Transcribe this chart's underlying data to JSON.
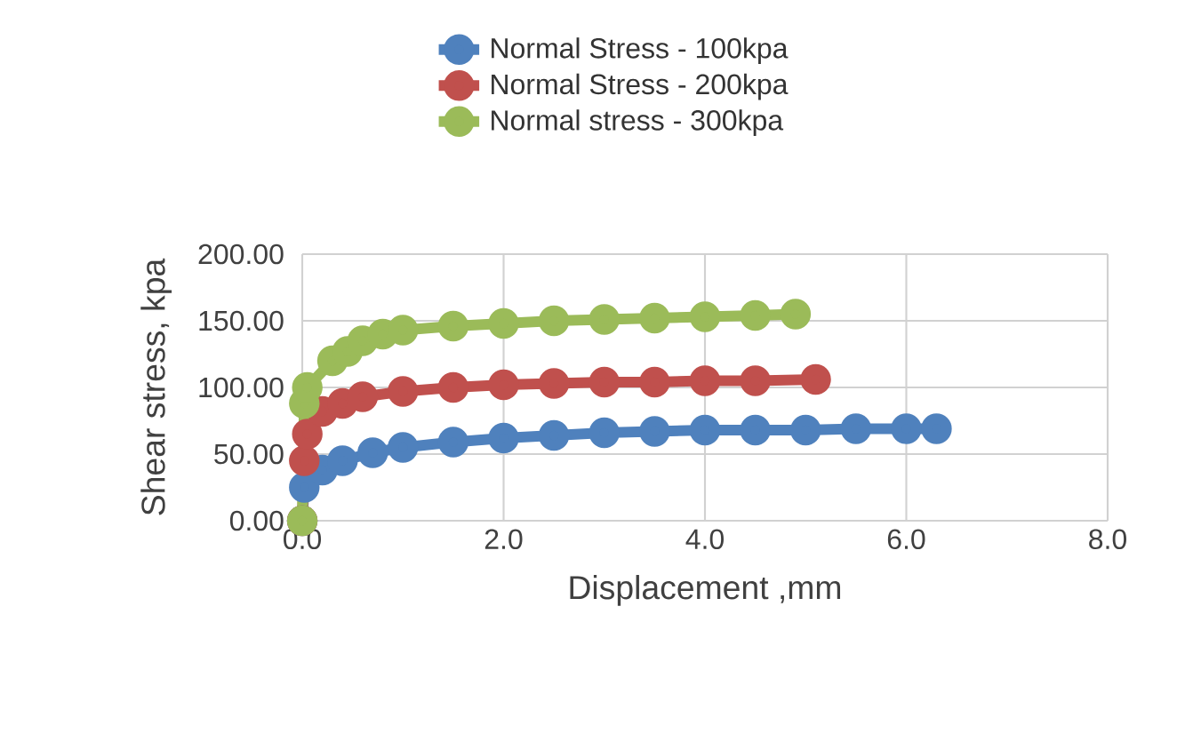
{
  "chart_data": {
    "type": "line",
    "xlabel": "Displacement ,mm",
    "ylabel": "Shear stress, kpa",
    "xlim": [
      0,
      8
    ],
    "xticks": [
      {
        "value": 0,
        "label": "0.0"
      },
      {
        "value": 2,
        "label": "2.0"
      },
      {
        "value": 4,
        "label": "4.0"
      },
      {
        "value": 6,
        "label": "6.0"
      },
      {
        "value": 8,
        "label": "8.0"
      }
    ],
    "ylim": [
      0,
      200
    ],
    "yticks": [
      {
        "value": 0,
        "label": "0.00"
      },
      {
        "value": 50,
        "label": "50.00"
      },
      {
        "value": 100,
        "label": "100.00"
      },
      {
        "value": 150,
        "label": "150.00"
      },
      {
        "value": 200,
        "label": "200.00"
      }
    ],
    "grid": true,
    "legend": "top",
    "marker": "circle",
    "series": [
      {
        "name": "Normal Stress - 100kpa",
        "color": "#4f81bd",
        "x": [
          0,
          0.02,
          0.2,
          0.4,
          0.7,
          1.0,
          1.5,
          2.0,
          2.5,
          3.0,
          3.5,
          4.0,
          4.5,
          5.0,
          5.5,
          6.0,
          6.3
        ],
        "values": [
          0,
          25,
          38,
          45,
          51,
          55,
          59,
          62,
          64,
          66,
          67,
          68,
          68,
          68,
          69,
          69,
          69
        ]
      },
      {
        "name": "Normal Stress - 200kpa",
        "color": "#c0504d",
        "x": [
          0,
          0.02,
          0.05,
          0.2,
          0.4,
          0.6,
          1.0,
          1.5,
          2.0,
          2.5,
          3.0,
          3.5,
          4.0,
          4.5,
          5.1
        ],
        "values": [
          0,
          45,
          65,
          82,
          88,
          93,
          97,
          100,
          102,
          103,
          104,
          104,
          105,
          105,
          106
        ]
      },
      {
        "name": "Normal stress - 300kpa",
        "color": "#9bbb59",
        "x": [
          0,
          0.02,
          0.05,
          0.3,
          0.45,
          0.6,
          0.8,
          1.0,
          1.5,
          2.0,
          2.5,
          3.0,
          3.5,
          4.0,
          4.5,
          4.9
        ],
        "values": [
          0,
          88,
          100,
          120,
          127,
          135,
          140,
          143,
          146,
          148,
          150,
          151,
          152,
          153,
          154,
          155
        ]
      }
    ]
  }
}
